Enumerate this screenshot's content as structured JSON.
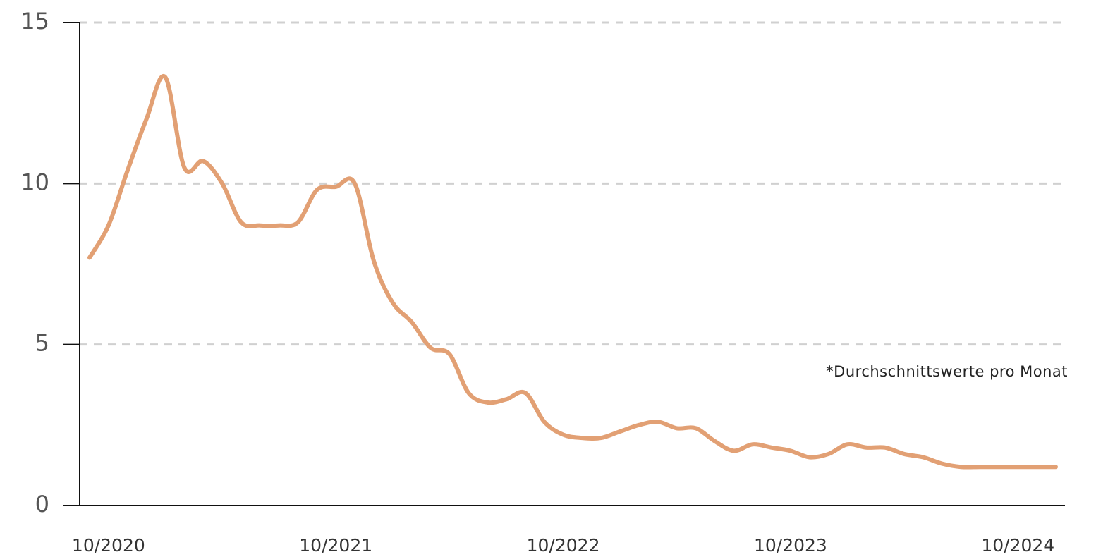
{
  "chart_data": {
    "type": "line",
    "annotation": "*Durchschnittswerte pro Monat",
    "categories": [
      null,
      "10/2020",
      null,
      null,
      null,
      null,
      null,
      null,
      null,
      null,
      null,
      null,
      null,
      "10/2021",
      null,
      null,
      null,
      null,
      null,
      null,
      null,
      null,
      null,
      null,
      null,
      "10/2022",
      null,
      null,
      null,
      null,
      null,
      null,
      null,
      null,
      null,
      null,
      null,
      "10/2023",
      null,
      null,
      null,
      null,
      null,
      null,
      null,
      null,
      null,
      null,
      null,
      "10/2024",
      null,
      null
    ],
    "series": [
      {
        "name": "Durchschnittswert",
        "color": "#e2a074",
        "values": [
          7.7,
          8.7,
          10.4,
          12.0,
          13.3,
          10.5,
          10.7,
          10.0,
          8.8,
          8.7,
          8.7,
          8.8,
          9.8,
          9.9,
          10.0,
          7.6,
          6.3,
          5.7,
          4.9,
          4.7,
          3.5,
          3.2,
          3.3,
          3.5,
          2.6,
          2.2,
          2.1,
          2.1,
          2.3,
          2.5,
          2.6,
          2.4,
          2.4,
          2.0,
          1.7,
          1.9,
          1.8,
          1.7,
          1.5,
          1.6,
          1.9,
          1.8,
          1.8,
          1.6,
          1.5,
          1.3,
          1.2,
          1.2,
          1.2,
          1.2,
          1.2,
          1.2
        ]
      }
    ],
    "ylim": [
      0,
      15
    ],
    "yticks": [
      0,
      5,
      10,
      15
    ],
    "grid": true
  }
}
